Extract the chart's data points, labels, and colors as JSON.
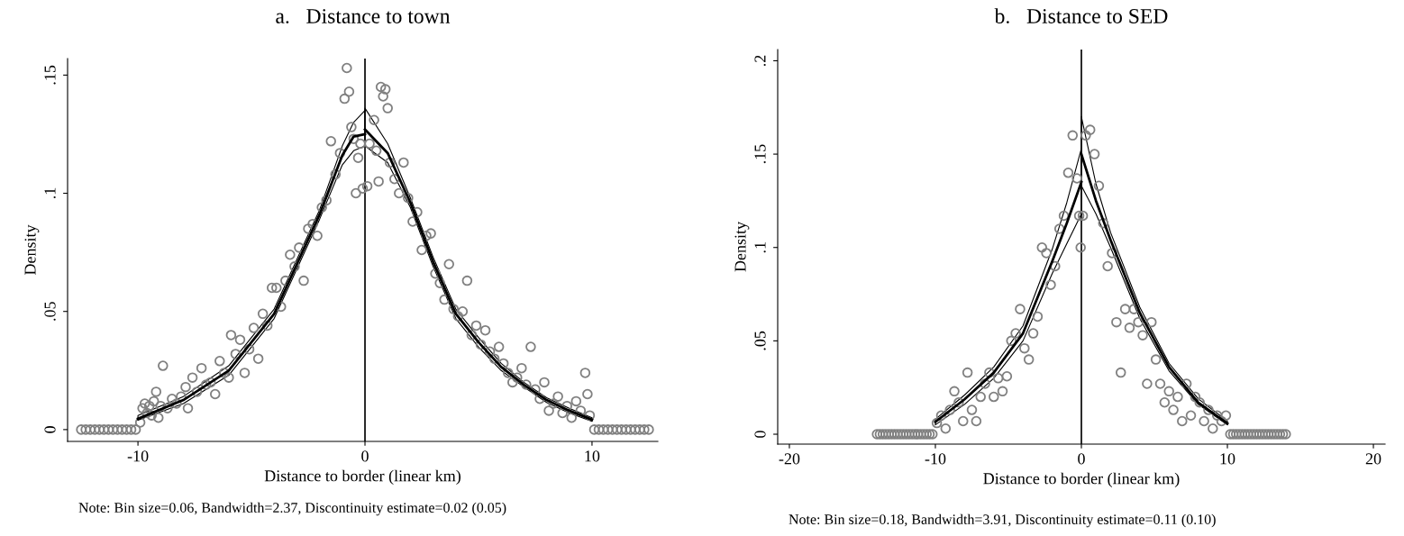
{
  "chart_data": [
    {
      "type": "scatter",
      "title": "a.   Distance to town",
      "xlabel": "Distance to border (linear km)",
      "ylabel": "Density",
      "annotations": [
        "Note: Bin size=0.06, Bandwidth=2.37, Discontinuity estimate=0.02 (0.05)"
      ],
      "xlim": [
        -13.1,
        12.9
      ],
      "ylim": [
        -0.005,
        0.157
      ],
      "xticks": [
        -10,
        0,
        10
      ],
      "yticks": [
        0,
        {
          "value": 0.05,
          "label": ".05"
        },
        {
          "value": 0.1,
          "label": ".1"
        },
        {
          "value": 0.15,
          "label": ".15"
        }
      ],
      "grid": false,
      "marker": "circle",
      "ref_lines": [
        {
          "axis": "x",
          "value": 0,
          "color": "#000000"
        }
      ],
      "series": [
        {
          "color": "#808080",
          "x": [
            -12.5,
            -12.3,
            -12.1,
            -11.9,
            -11.7,
            -11.5,
            -11.3,
            -11.1,
            -10.9,
            -10.7,
            -10.5,
            -10.3,
            -10.1,
            -9.9,
            -9.8,
            -9.7,
            -9.6,
            -9.5,
            -9.4,
            -9.3,
            -9.2,
            -9.1,
            -9.0,
            -8.9,
            -8.7,
            -8.5,
            -8.3,
            -8.1,
            -7.9,
            -7.8,
            -7.6,
            -7.4,
            -7.2,
            -7.0,
            -6.8,
            -6.6,
            -6.4,
            -6.2,
            -6.0,
            -5.9,
            -5.7,
            -5.5,
            -5.3,
            -5.1,
            -4.9,
            -4.7,
            -4.5,
            -4.3,
            -4.1,
            -3.9,
            -3.7,
            -3.5,
            -3.3,
            -3.1,
            -2.9,
            -2.7,
            -2.5,
            -2.3,
            -2.1,
            -1.9,
            -1.7,
            -1.5,
            -1.3,
            -1.1,
            -0.9,
            -0.8,
            -0.7,
            -0.6,
            -0.5,
            -0.4,
            -0.3,
            -0.2,
            -0.1,
            0.1,
            0.2,
            0.4,
            0.5,
            0.6,
            0.7,
            0.8,
            0.9,
            1.0,
            1.1,
            1.3,
            1.5,
            1.7,
            1.9,
            2.1,
            2.3,
            2.5,
            2.7,
            2.9,
            3.1,
            3.3,
            3.5,
            3.7,
            3.9,
            4.1,
            4.3,
            4.5,
            4.7,
            4.9,
            5.1,
            5.3,
            5.5,
            5.7,
            5.9,
            6.1,
            6.3,
            6.5,
            6.7,
            6.9,
            7.1,
            7.3,
            7.5,
            7.7,
            7.9,
            8.1,
            8.3,
            8.5,
            8.7,
            8.9,
            9.1,
            9.3,
            9.5,
            9.7,
            9.8,
            9.9,
            10.1,
            10.3,
            10.5,
            10.7,
            10.9,
            11.1,
            11.3,
            11.5,
            11.7,
            11.9,
            12.1,
            12.3,
            12.5
          ],
          "values": [
            0,
            0,
            0,
            0,
            0,
            0,
            0,
            0,
            0,
            0,
            0,
            0,
            0,
            0.003,
            0.009,
            0.011,
            0.007,
            0.01,
            0.006,
            0.012,
            0.016,
            0.005,
            0.01,
            0.027,
            0.009,
            0.013,
            0.011,
            0.014,
            0.018,
            0.009,
            0.022,
            0.016,
            0.026,
            0.019,
            0.02,
            0.015,
            0.029,
            0.024,
            0.022,
            0.04,
            0.032,
            0.038,
            0.024,
            0.034,
            0.043,
            0.03,
            0.049,
            0.044,
            0.06,
            0.06,
            0.052,
            0.063,
            0.074,
            0.069,
            0.077,
            0.063,
            0.085,
            0.087,
            0.082,
            0.094,
            0.097,
            0.122,
            0.108,
            0.117,
            0.14,
            0.153,
            0.143,
            0.128,
            0.123,
            0.1,
            0.115,
            0.121,
            0.102,
            0.103,
            0.121,
            0.131,
            0.118,
            0.105,
            0.145,
            0.141,
            0.144,
            0.136,
            0.113,
            0.106,
            0.1,
            0.113,
            0.098,
            0.088,
            0.092,
            0.076,
            0.082,
            0.083,
            0.066,
            0.062,
            0.055,
            0.07,
            0.051,
            0.048,
            0.05,
            0.063,
            0.04,
            0.044,
            0.036,
            0.042,
            0.033,
            0.03,
            0.035,
            0.028,
            0.024,
            0.02,
            0.022,
            0.026,
            0.019,
            0.035,
            0.017,
            0.013,
            0.02,
            0.008,
            0.011,
            0.014,
            0.007,
            0.01,
            0.005,
            0.012,
            0.008,
            0.024,
            0.015,
            0.006,
            0,
            0,
            0,
            0,
            0,
            0,
            0,
            0,
            0,
            0,
            0,
            0,
            0
          ]
        },
        {
          "type": "line",
          "marker": "none",
          "color": "#000000",
          "x": [
            -10,
            -8,
            -6,
            -4,
            -3,
            -2,
            -1,
            -0.5,
            0
          ],
          "values": [
            0.0046,
            0.0125,
            0.025,
            0.049,
            0.07,
            0.091,
            0.116,
            0.124,
            0.125
          ],
          "lower": [
            0.004,
            0.011,
            0.023,
            0.047,
            0.068,
            0.089,
            0.112,
            0.118,
            0.12
          ],
          "upper": [
            0.006,
            0.014,
            0.027,
            0.051,
            0.072,
            0.093,
            0.12,
            0.13,
            0.135
          ]
        },
        {
          "type": "line",
          "marker": "none",
          "color": "#000000",
          "x": [
            0,
            1,
            2,
            3,
            4,
            5,
            6,
            7,
            8,
            9,
            10
          ],
          "values": [
            0.127,
            0.117,
            0.096,
            0.071,
            0.049,
            0.037,
            0.0265,
            0.019,
            0.0125,
            0.008,
            0.0042
          ],
          "lower": [
            0.12,
            0.113,
            0.094,
            0.069,
            0.047,
            0.035,
            0.025,
            0.018,
            0.0115,
            0.007,
            0.0035
          ],
          "upper": [
            0.136,
            0.121,
            0.098,
            0.073,
            0.051,
            0.039,
            0.028,
            0.02,
            0.0135,
            0.009,
            0.005
          ]
        }
      ]
    },
    {
      "type": "scatter",
      "title": "b.   Distance to SED",
      "xlabel": "Distance to border (linear km)",
      "ylabel": "Density",
      "annotations": [
        "Note: Bin size=0.18, Bandwidth=3.91, Discontinuity estimate=0.11 (0.10)"
      ],
      "xlim": [
        -20.8,
        20.8
      ],
      "ylim": [
        -0.0053,
        0.206
      ],
      "xticks": [
        -20,
        -10,
        0,
        10,
        20
      ],
      "yticks": [
        0,
        {
          "value": 0.05,
          "label": ".05"
        },
        {
          "value": 0.1,
          "label": ".1"
        },
        {
          "value": 0.15,
          "label": ".15"
        },
        {
          "value": 0.2,
          "label": ".2"
        }
      ],
      "grid": false,
      "marker": "circle",
      "ref_lines": [
        {
          "axis": "x",
          "value": 0,
          "color": "#000000"
        }
      ],
      "series": [
        {
          "color": "#808080",
          "x": [
            -14.0,
            -13.8,
            -13.6,
            -13.4,
            -13.2,
            -13.0,
            -12.8,
            -12.6,
            -12.4,
            -12.2,
            -12.0,
            -11.8,
            -11.6,
            -11.4,
            -11.2,
            -11.0,
            -10.8,
            -10.6,
            -10.4,
            -10.2,
            -9.9,
            -9.6,
            -9.3,
            -9.0,
            -8.7,
            -8.4,
            -8.1,
            -7.8,
            -7.5,
            -7.2,
            -6.9,
            -6.6,
            -6.3,
            -6.0,
            -5.7,
            -5.4,
            -5.1,
            -4.8,
            -4.5,
            -4.2,
            -3.9,
            -3.6,
            -3.3,
            -3.0,
            -2.7,
            -2.4,
            -2.1,
            -1.8,
            -1.5,
            -1.2,
            -0.9,
            -0.6,
            -0.3,
            -0.15,
            -0.05,
            0.1,
            0.3,
            0.6,
            0.9,
            1.2,
            1.5,
            1.8,
            2.1,
            2.4,
            2.7,
            3.0,
            3.3,
            3.6,
            3.9,
            4.2,
            4.5,
            4.8,
            5.1,
            5.4,
            5.7,
            6.0,
            6.3,
            6.6,
            6.9,
            7.2,
            7.5,
            7.8,
            8.1,
            8.4,
            8.7,
            9.0,
            9.3,
            9.6,
            9.9,
            10.2,
            10.4,
            10.6,
            10.8,
            11.0,
            11.2,
            11.4,
            11.6,
            11.8,
            12.0,
            12.2,
            12.4,
            12.6,
            12.8,
            13.0,
            13.2,
            13.4,
            13.6,
            13.8,
            14.0
          ],
          "values": [
            0,
            0,
            0,
            0,
            0,
            0,
            0,
            0,
            0,
            0,
            0,
            0,
            0,
            0,
            0,
            0,
            0,
            0,
            0,
            0,
            0.006,
            0.01,
            0.003,
            0.013,
            0.023,
            0.017,
            0.007,
            0.033,
            0.013,
            0.007,
            0.02,
            0.027,
            0.033,
            0.02,
            0.03,
            0.023,
            0.031,
            0.05,
            0.054,
            0.067,
            0.046,
            0.04,
            0.054,
            0.063,
            0.1,
            0.097,
            0.08,
            0.09,
            0.11,
            0.117,
            0.14,
            0.16,
            0.137,
            0.117,
            0.1,
            0.117,
            0.16,
            0.163,
            0.15,
            0.133,
            0.113,
            0.09,
            0.097,
            0.06,
            0.033,
            0.067,
            0.057,
            0.067,
            0.06,
            0.053,
            0.027,
            0.06,
            0.04,
            0.027,
            0.017,
            0.023,
            0.013,
            0.02,
            0.007,
            0.027,
            0.01,
            0.02,
            0.017,
            0.007,
            0.013,
            0.003,
            0.01,
            0.007,
            0.01,
            0,
            0,
            0,
            0,
            0,
            0,
            0,
            0,
            0,
            0,
            0,
            0,
            0,
            0,
            0,
            0,
            0,
            0,
            0,
            0
          ]
        },
        {
          "type": "line",
          "marker": "none",
          "color": "#000000",
          "x": [
            -10,
            -8,
            -6,
            -4,
            -2,
            -1,
            0
          ],
          "values": [
            0.0066,
            0.0187,
            0.033,
            0.054,
            0.0925,
            0.113,
            0.135
          ],
          "lower": [
            0.005,
            0.016,
            0.03,
            0.05,
            0.086,
            0.102,
            0.118
          ],
          "upper": [
            0.008,
            0.021,
            0.036,
            0.058,
            0.099,
            0.124,
            0.153
          ]
        },
        {
          "type": "line",
          "marker": "none",
          "color": "#000000",
          "x": [
            0,
            1,
            2,
            4,
            6,
            8,
            10
          ],
          "values": [
            0.15,
            0.125,
            0.104,
            0.065,
            0.036,
            0.017,
            0.0058
          ],
          "lower": [
            0.133,
            0.118,
            0.1,
            0.062,
            0.034,
            0.016,
            0.005
          ],
          "upper": [
            0.17,
            0.134,
            0.108,
            0.068,
            0.038,
            0.019,
            0.007
          ]
        }
      ]
    }
  ]
}
